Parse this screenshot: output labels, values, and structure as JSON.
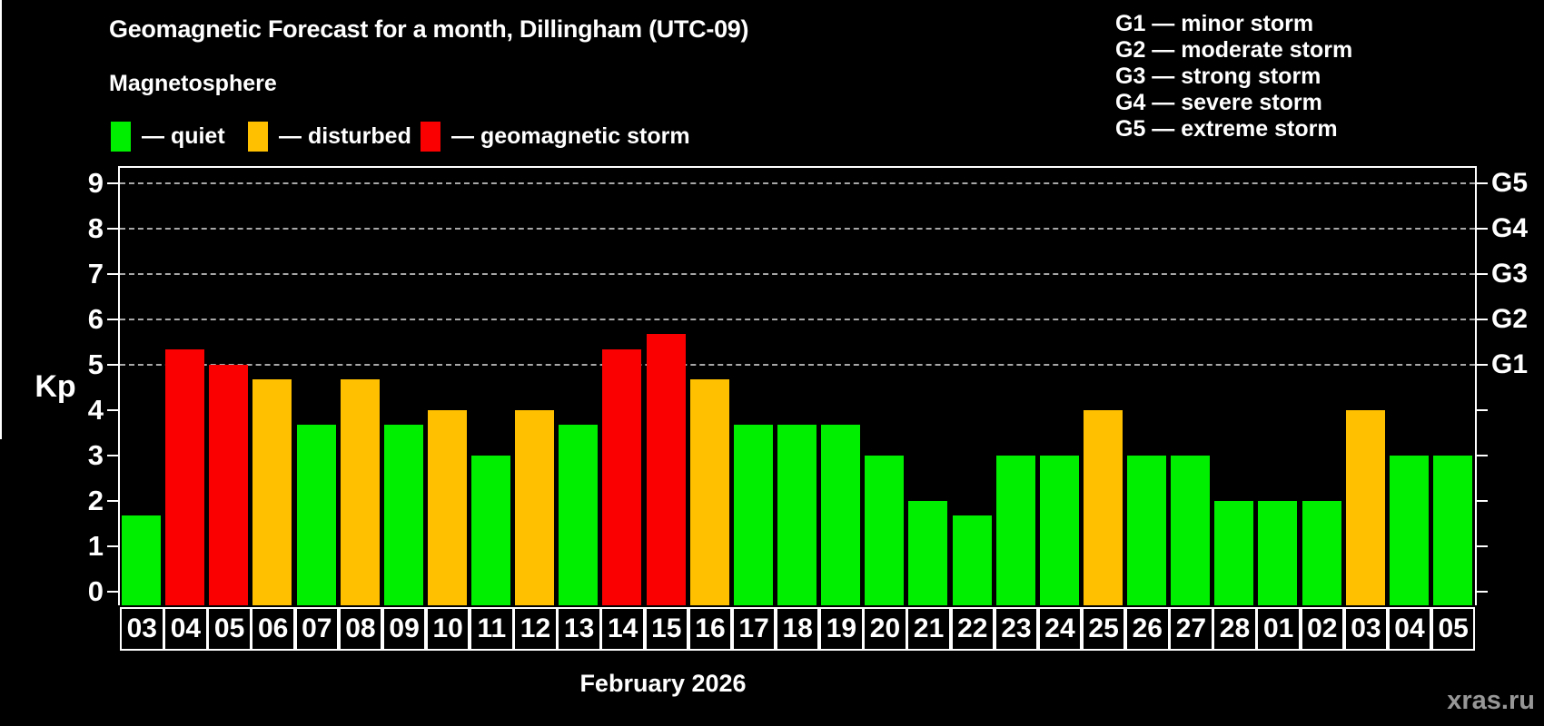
{
  "header": {
    "title": "Geomagnetic Forecast for a month, Dillingham (UTC-09)",
    "subtitle": "Magnetosphere"
  },
  "legend": {
    "items": [
      {
        "name": "quiet",
        "text": "— quiet",
        "color": "#00ee00"
      },
      {
        "name": "disturbed",
        "text": "— disturbed",
        "color": "#ffc000"
      },
      {
        "name": "geomagnetic-storm",
        "text": "— geomagnetic storm",
        "color": "#fb0000"
      }
    ]
  },
  "g_scale": {
    "items": [
      {
        "text": "G1 — minor storm"
      },
      {
        "text": "G2 — moderate storm"
      },
      {
        "text": "G3 — strong storm"
      },
      {
        "text": "G4 — severe storm"
      },
      {
        "text": "G5 — extreme storm"
      }
    ]
  },
  "watermark": "xras.ru",
  "chart_data": {
    "type": "bar",
    "title": "Geomagnetic Forecast for a month, Dillingham (UTC-09)",
    "ylabel": "Kp",
    "xlabel": "February 2026",
    "ylim": [
      0,
      9.4
    ],
    "yticks": [
      0,
      1,
      2,
      3,
      4,
      5,
      6,
      7,
      8,
      9
    ],
    "gridlines": [
      5,
      6,
      7,
      8,
      9
    ],
    "right_axis": [
      {
        "kp": 5,
        "label": "G1"
      },
      {
        "kp": 6,
        "label": "G2"
      },
      {
        "kp": 7,
        "label": "G3"
      },
      {
        "kp": 8,
        "label": "G4"
      },
      {
        "kp": 9,
        "label": "G5"
      }
    ],
    "legend_position": "top-left",
    "grid": "dashed horizontal at Kp 5-9",
    "month_separator_after_index": 25,
    "categories": [
      "03",
      "04",
      "05",
      "06",
      "07",
      "08",
      "09",
      "10",
      "11",
      "12",
      "13",
      "14",
      "15",
      "16",
      "17",
      "18",
      "19",
      "20",
      "21",
      "22",
      "23",
      "24",
      "25",
      "26",
      "27",
      "28",
      "01",
      "02",
      "03",
      "04",
      "05"
    ],
    "values": [
      1.67,
      5.33,
      5.0,
      4.67,
      3.67,
      4.67,
      3.67,
      4.0,
      3.0,
      4.0,
      3.67,
      5.33,
      5.67,
      4.67,
      3.67,
      3.67,
      3.67,
      3.0,
      2.0,
      1.67,
      3.0,
      3.0,
      4.0,
      3.0,
      3.0,
      2.0,
      2.0,
      2.0,
      4.0,
      3.0,
      3.0
    ],
    "statuses": [
      "quiet",
      "storm",
      "storm",
      "disturbed",
      "quiet",
      "disturbed",
      "quiet",
      "disturbed",
      "quiet",
      "disturbed",
      "quiet",
      "storm",
      "storm",
      "disturbed",
      "quiet",
      "quiet",
      "quiet",
      "quiet",
      "quiet",
      "quiet",
      "quiet",
      "quiet",
      "disturbed",
      "quiet",
      "quiet",
      "quiet",
      "quiet",
      "quiet",
      "disturbed",
      "quiet",
      "quiet"
    ],
    "status_colors": {
      "quiet": "#00ee00",
      "disturbed": "#ffc000",
      "storm": "#fb0000"
    }
  }
}
